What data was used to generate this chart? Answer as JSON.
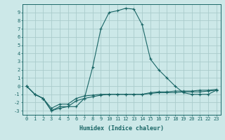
{
  "xlabel": "Humidex (Indice chaleur)",
  "bg_color": "#cce8e8",
  "grid_color": "#aacccc",
  "line_color": "#1a6666",
  "xlim": [
    -0.5,
    23.5
  ],
  "ylim": [
    -3.5,
    10
  ],
  "xticks": [
    0,
    1,
    2,
    3,
    4,
    5,
    6,
    7,
    8,
    9,
    10,
    11,
    12,
    13,
    14,
    15,
    16,
    17,
    18,
    19,
    20,
    21,
    22,
    23
  ],
  "yticks": [
    -3,
    -2,
    -1,
    0,
    1,
    2,
    3,
    4,
    5,
    6,
    7,
    8,
    9
  ],
  "series1_x": [
    0,
    1,
    2,
    3,
    4,
    5,
    6,
    7,
    8,
    9,
    10,
    11,
    12,
    13,
    14,
    15,
    16,
    17,
    18,
    19,
    20,
    21,
    22,
    23
  ],
  "series1_y": [
    0,
    -1,
    -1.5,
    -3,
    -2.5,
    -2.5,
    -1.8,
    -1.5,
    -1.3,
    -1.1,
    -1,
    -1,
    -1,
    -1,
    -1,
    -0.9,
    -0.8,
    -0.8,
    -0.8,
    -0.7,
    -0.7,
    -0.7,
    -0.6,
    -0.5
  ],
  "series2_x": [
    0,
    1,
    2,
    3,
    4,
    5,
    6,
    7,
    8,
    9,
    10,
    11,
    12,
    13,
    14,
    15,
    16,
    17,
    18,
    19,
    20,
    21,
    22,
    23
  ],
  "series2_y": [
    0,
    -1,
    -1.5,
    -2.7,
    -2.2,
    -2.2,
    -1.5,
    -1.2,
    -1.1,
    -1,
    -1,
    -1,
    -1,
    -1,
    -1,
    -0.8,
    -0.7,
    -0.7,
    -0.6,
    -0.6,
    -0.6,
    -0.5,
    -0.5,
    -0.4
  ],
  "series3_x": [
    0,
    1,
    2,
    3,
    4,
    5,
    6,
    7,
    8,
    9,
    10,
    11,
    12,
    13,
    14,
    15,
    16,
    17,
    18,
    19,
    20,
    21,
    22,
    23
  ],
  "series3_y": [
    0,
    -1,
    -1.5,
    -3,
    -2.7,
    -2.5,
    -2.5,
    -1.5,
    2.3,
    7,
    9,
    9.2,
    9.5,
    9.4,
    7.5,
    3.3,
    2,
    1,
    0,
    -0.8,
    -1,
    -1,
    -1,
    -0.5
  ],
  "tick_fontsize": 5,
  "xlabel_fontsize": 6
}
